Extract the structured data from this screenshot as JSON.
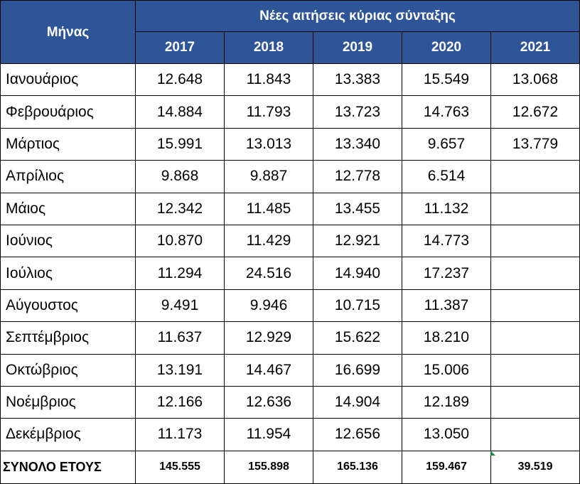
{
  "header": {
    "month_col": "Μήνας",
    "group_title": "Νέες αιτήσεις κύριας σύνταξης",
    "years": [
      "2017",
      "2018",
      "2019",
      "2020",
      "2021"
    ]
  },
  "rows": [
    {
      "month": "Ιανουάριος",
      "values": [
        "12.648",
        "11.843",
        "13.383",
        "15.549",
        "13.068"
      ]
    },
    {
      "month": "Φεβρουάριος",
      "values": [
        "14.884",
        "11.793",
        "13.723",
        "14.763",
        "12.672"
      ]
    },
    {
      "month": "Μάρτιος",
      "values": [
        "15.991",
        "13.013",
        "13.340",
        "9.657",
        "13.779"
      ]
    },
    {
      "month": "Απρίλιος",
      "values": [
        "9.868",
        "9.887",
        "12.778",
        "6.514",
        ""
      ]
    },
    {
      "month": "Μάιος",
      "values": [
        "12.342",
        "11.485",
        "13.455",
        "11.132",
        ""
      ]
    },
    {
      "month": "Ιούνιος",
      "values": [
        "10.870",
        "11.429",
        "12.921",
        "14.773",
        ""
      ]
    },
    {
      "month": "Ιούλιος",
      "values": [
        "11.294",
        "24.516",
        "14.940",
        "17.237",
        ""
      ]
    },
    {
      "month": "Αύγουστος",
      "values": [
        "9.491",
        "9.946",
        "10.715",
        "11.387",
        ""
      ]
    },
    {
      "month": "Σεπτέμβριος",
      "values": [
        "11.637",
        "12.929",
        "15.622",
        "18.210",
        ""
      ]
    },
    {
      "month": "Οκτώβριος",
      "values": [
        "13.191",
        "14.467",
        "16.699",
        "15.006",
        ""
      ]
    },
    {
      "month": "Νοέμβριος",
      "values": [
        "12.166",
        "12.636",
        "14.904",
        "12.189",
        ""
      ]
    },
    {
      "month": "Δεκέμβριος",
      "values": [
        "11.173",
        "11.954",
        "12.656",
        "13.050",
        ""
      ]
    }
  ],
  "total": {
    "label": "ΣΥΝΟΛΟ ΕΤΟΥΣ",
    "values": [
      "145.555",
      "155.898",
      "165.136",
      "159.467",
      "39.519"
    ]
  },
  "colors": {
    "header_bg": "#2e5597",
    "header_text": "#ffffff",
    "cell_indicator": "#1e8a3c"
  }
}
